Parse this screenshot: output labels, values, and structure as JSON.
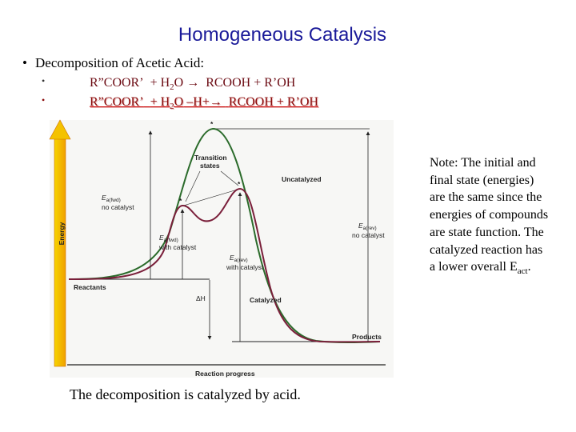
{
  "title": "Homogeneous Catalysis",
  "bullets": {
    "main_dot": "•",
    "main_text": "Decomposition of Acetic Acid:",
    "sub_dot": "•",
    "eq1": {
      "reactant": "R”COOR’",
      "water_h": "+ H",
      "water_sub": "2",
      "water_o": "O",
      "arrow": " → ",
      "products": "RCOOH  +  R’OH"
    },
    "eq2": {
      "reactant": "R”COOR’",
      "water_h": "+ H",
      "water_sub": "2",
      "water_o": "O",
      "arrow": " –H+→ ",
      "products": "RCOOH  +  R’OH"
    }
  },
  "diagram": {
    "y_axis_label": "Energy",
    "x_axis_label": "Reaction progress",
    "transition_states": [
      "Transition",
      "states"
    ],
    "uncatalyzed": "Uncatalyzed",
    "catalyzed": "Catalyzed",
    "reactants": "Reactants",
    "products": "Products",
    "delta_h": "ΔH",
    "ea_fwd_nocat": {
      "e": "E",
      "sub": "a(fwd)",
      "line2": "no catalyst"
    },
    "ea_fwd_cat": {
      "e": "E",
      "sub": "a(fwd)",
      "line2": "with catalyst"
    },
    "ea_rev_cat": {
      "e": "E",
      "sub": "a(rev)",
      "line2": "with catalyst"
    },
    "ea_rev_nocat": {
      "e": "E",
      "sub": "a(rev)",
      "line2": "no catalyst"
    },
    "star": "*",
    "colors": {
      "uncatalyzed_curve": "#2b6b2b",
      "catalyzed_curve": "#7a1f3a",
      "axis_arrow": "#e8b800",
      "axis_arrow_edge": "#d07000",
      "level_lines": "#222222"
    }
  },
  "note": {
    "text": "Note: The initial and final state (energies) are the same since the energies of compounds are state function.  The catalyzed reaction has a lower overall E",
    "sub": "act",
    "end": "."
  },
  "caption": "The decomposition is catalyzed by acid."
}
